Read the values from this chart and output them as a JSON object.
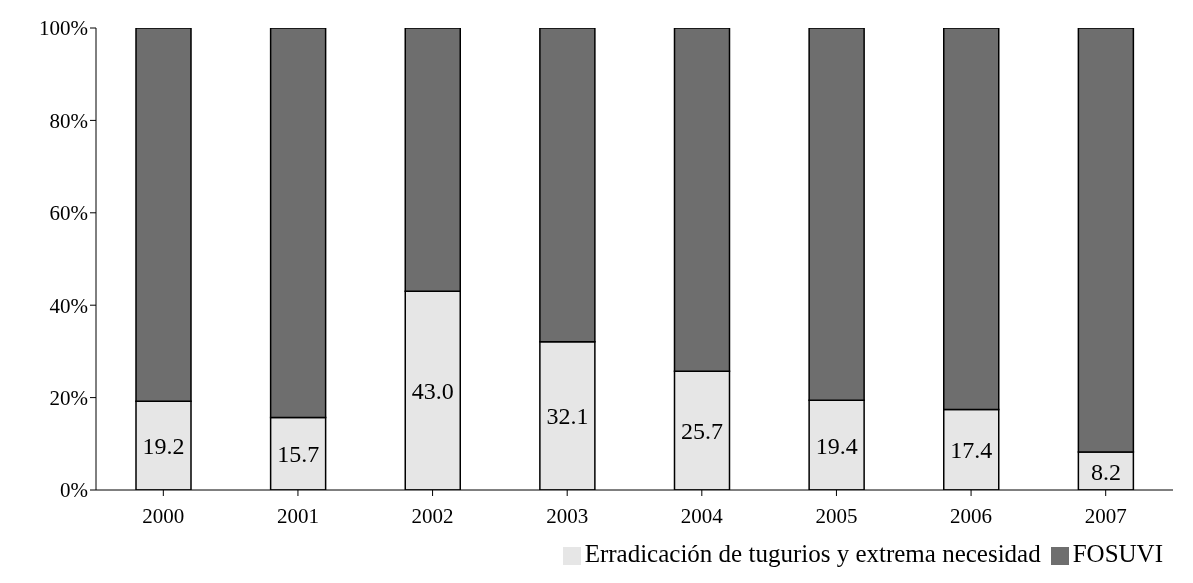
{
  "chart_data": {
    "type": "bar",
    "stacked": true,
    "categories": [
      "2000",
      "2001",
      "2002",
      "2003",
      "2004",
      "2005",
      "2006",
      "2007"
    ],
    "series": [
      {
        "name": "Erradicación de tugurios y extrema necesidad",
        "color": "#e6e6e6",
        "values": [
          19.2,
          15.7,
          43.0,
          32.1,
          25.7,
          19.4,
          17.4,
          8.2
        ],
        "value_labels": [
          "19.2",
          "15.7",
          "43.0",
          "32.1",
          "25.7",
          "19.4",
          "17.4",
          "8.2"
        ]
      },
      {
        "name": "FOSUVI",
        "color": "#6e6e6e",
        "values": [
          80.8,
          84.3,
          57.0,
          67.9,
          74.3,
          80.6,
          82.6,
          91.8
        ]
      }
    ],
    "ylim": [
      0,
      100
    ],
    "yticks": [
      {
        "value": 0,
        "label": "0%"
      },
      {
        "value": 20,
        "label": "20%"
      },
      {
        "value": 40,
        "label": "40%"
      },
      {
        "value": 60,
        "label": "60%"
      },
      {
        "value": 80,
        "label": "80%"
      },
      {
        "value": 100,
        "label": "100%"
      }
    ],
    "grid": false,
    "legend": "bottom right"
  }
}
